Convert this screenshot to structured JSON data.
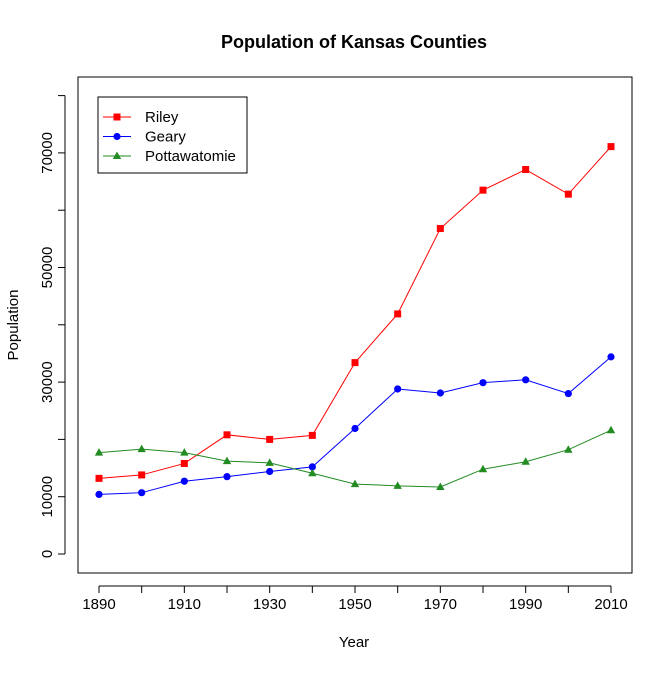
{
  "chart_data": {
    "type": "line",
    "title": "Population of Kansas Counties",
    "xlabel": "Year",
    "ylabel": "Population",
    "x": [
      1890,
      1900,
      1910,
      1920,
      1930,
      1940,
      1950,
      1960,
      1970,
      1980,
      1990,
      2000,
      2010
    ],
    "xlim": [
      1890,
      2010
    ],
    "ylim": [
      0,
      80000
    ],
    "x_ticks": [
      "1890",
      "1910",
      "1930",
      "1950",
      "1970",
      "1990",
      "2010"
    ],
    "y_ticks": [
      "0",
      "10000",
      "30000",
      "50000",
      "70000"
    ],
    "grid": false,
    "legend_position": "top-left",
    "series": [
      {
        "name": "Riley",
        "color": "#ff0000",
        "marker": "square",
        "values": [
          13200,
          13800,
          15800,
          20800,
          20000,
          20700,
          33400,
          41900,
          56800,
          63500,
          67100,
          62800,
          71100
        ]
      },
      {
        "name": "Geary",
        "color": "#0000ff",
        "marker": "circle",
        "values": [
          10400,
          10700,
          12700,
          13500,
          14400,
          15200,
          21900,
          28800,
          28100,
          29900,
          30400,
          28000,
          34400
        ]
      },
      {
        "name": "Pottawatomie",
        "color": "#228b22",
        "marker": "triangle",
        "values": [
          17700,
          18300,
          17700,
          16200,
          15900,
          14100,
          12200,
          11900,
          11700,
          14800,
          16100,
          18200,
          21600
        ]
      }
    ]
  }
}
